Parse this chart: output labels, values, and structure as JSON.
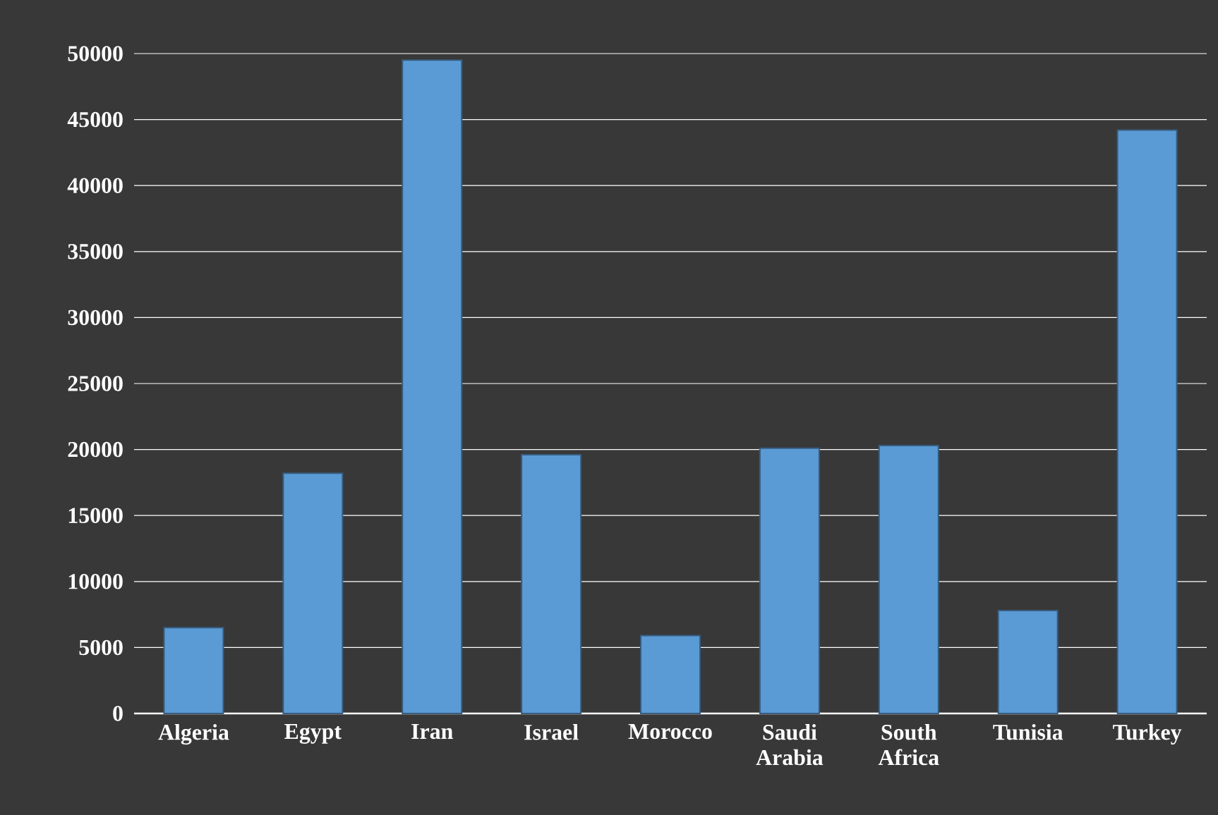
{
  "chart_data": {
    "type": "bar",
    "categories": [
      "Algeria",
      "Egypt",
      "Iran",
      "Israel",
      "Morocco",
      "Saudi Arabia",
      "South Africa",
      "Tunisia",
      "Turkey"
    ],
    "values": [
      6500,
      18200,
      49500,
      19600,
      5900,
      20100,
      20300,
      7800,
      44200
    ],
    "color": "#5b9bd5",
    "ylim": [
      0,
      50000
    ],
    "yticks": [
      0,
      5000,
      10000,
      15000,
      20000,
      25000,
      30000,
      35000,
      40000,
      45000,
      50000
    ],
    "grid": "y"
  }
}
